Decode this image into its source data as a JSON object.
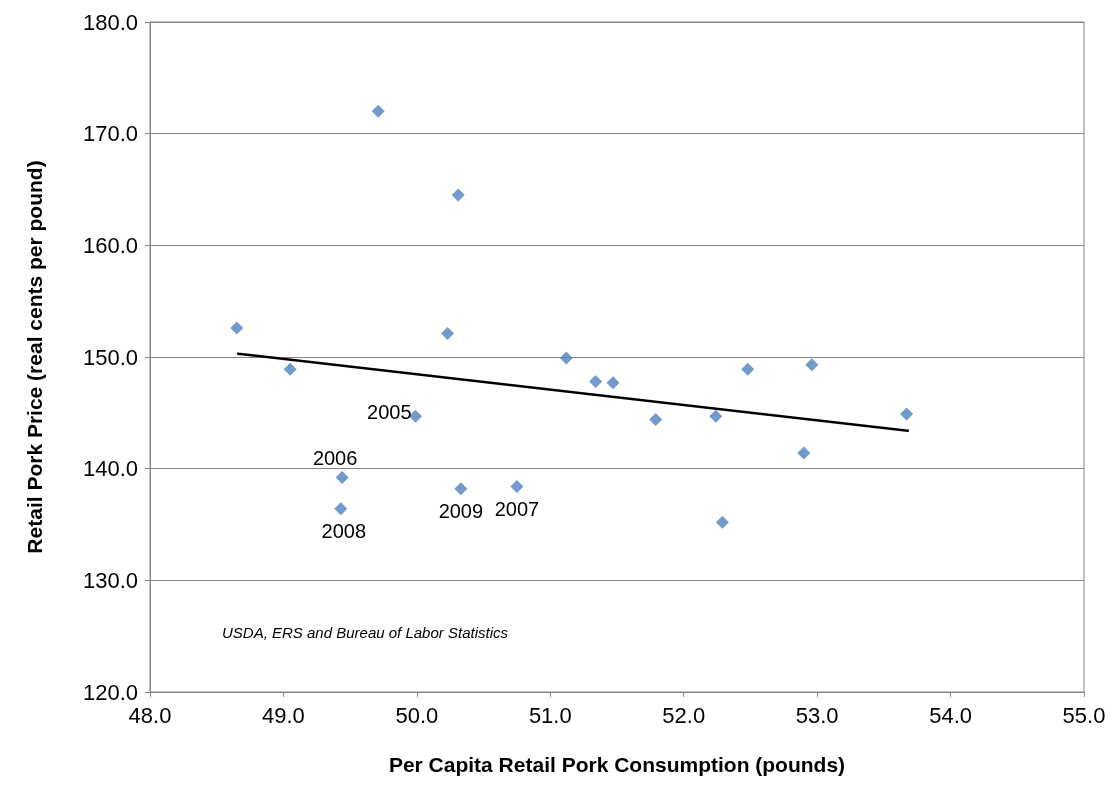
{
  "chart_data": {
    "type": "scatter",
    "xlabel": "Per Capita Retail Pork Consumption (pounds)",
    "ylabel": "Retail Pork Price (real cents per pound)",
    "x": [
      48.65,
      49.05,
      49.71,
      50.31,
      50.23,
      49.99,
      49.44,
      49.43,
      50.33,
      50.75,
      51.12,
      51.34,
      51.47,
      51.79,
      52.24,
      52.29,
      52.48,
      52.96,
      52.9,
      53.67
    ],
    "series": [
      {
        "color": "#4f81bd",
        "marker": "diamond",
        "values": [
          152.6,
          148.9,
          172.0,
          164.5,
          152.1,
          144.7,
          139.2,
          136.4,
          138.2,
          138.4,
          149.9,
          147.8,
          147.7,
          144.4,
          144.7,
          135.2,
          148.9,
          149.3,
          141.4,
          144.9
        ]
      },
      {
        "type": "line",
        "color": "#000000",
        "marker": "none",
        "line_style": "solid",
        "x": [
          48.66,
          53.68
        ],
        "values": [
          150.3,
          143.4
        ]
      }
    ],
    "xlim": [
      48,
      55
    ],
    "xticks": [
      {
        "value": 48,
        "label": "48.0"
      },
      {
        "value": 49,
        "label": "49.0"
      },
      {
        "value": 50,
        "label": "50.0"
      },
      {
        "value": 51,
        "label": "51.0"
      },
      {
        "value": 52,
        "label": "52.0"
      },
      {
        "value": 53,
        "label": "53.0"
      },
      {
        "value": 54,
        "label": "54.0"
      },
      {
        "value": 55,
        "label": "55.0"
      }
    ],
    "ylim": [
      120,
      180
    ],
    "yticks": [
      {
        "value": 120,
        "label": "120.0"
      },
      {
        "value": 130,
        "label": "130.0"
      },
      {
        "value": 140,
        "label": "140.0"
      },
      {
        "value": 150,
        "label": "150.0"
      },
      {
        "value": 160,
        "label": "160.0"
      },
      {
        "value": 170,
        "label": "170.0"
      },
      {
        "value": 180,
        "label": "180.0"
      }
    ],
    "grid": "y",
    "annotations": [
      {
        "text": "2005",
        "x": 49.99,
        "y": 144.7
      },
      {
        "text": "2006",
        "x": 49.44,
        "y": 139.2
      },
      {
        "text": "2008",
        "x": 49.43,
        "y": 136.4
      },
      {
        "text": "2009",
        "x": 50.33,
        "y": 138.2
      },
      {
        "text": "2007",
        "x": 50.75,
        "y": 138.4
      },
      "USDA, ERS and Bureau of Labor Statistics"
    ]
  }
}
